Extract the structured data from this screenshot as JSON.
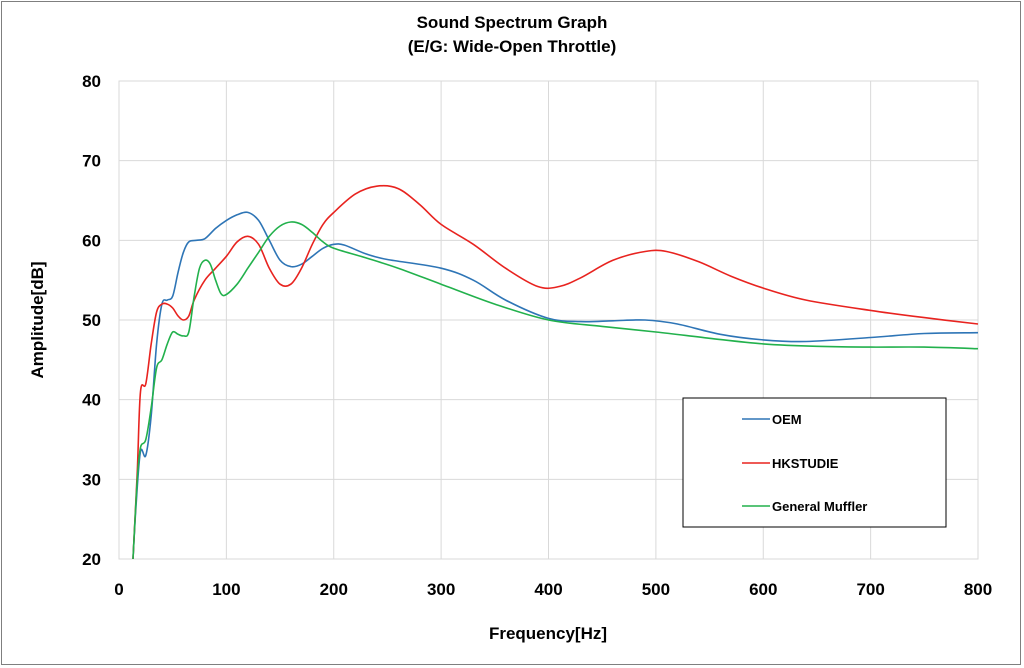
{
  "chart_data": {
    "type": "line",
    "title": "Sound Spectrum Graph",
    "subtitle": "(E/G: Wide-Open Throttle)",
    "xlabel": "Frequency[Hz]",
    "ylabel": "Amplitude[dB]",
    "xlim": [
      0,
      800
    ],
    "ylim": [
      20,
      80
    ],
    "x_ticks": [
      0,
      100,
      200,
      300,
      400,
      500,
      600,
      700,
      800
    ],
    "y_ticks": [
      20,
      30,
      40,
      50,
      60,
      70,
      80
    ],
    "grid": true,
    "legend_position": "bottom-right",
    "series": [
      {
        "name": "OEM",
        "color": "#2e75b6",
        "points": [
          [
            13,
            20
          ],
          [
            16,
            27
          ],
          [
            20,
            33.5
          ],
          [
            25,
            33
          ],
          [
            30,
            38
          ],
          [
            35,
            47
          ],
          [
            40,
            52
          ],
          [
            45,
            52.5
          ],
          [
            50,
            53
          ],
          [
            55,
            56
          ],
          [
            60,
            58.5
          ],
          [
            65,
            59.8
          ],
          [
            72,
            60
          ],
          [
            80,
            60.2
          ],
          [
            90,
            61.5
          ],
          [
            100,
            62.5
          ],
          [
            110,
            63.2
          ],
          [
            120,
            63.5
          ],
          [
            130,
            62.5
          ],
          [
            140,
            60
          ],
          [
            150,
            57.5
          ],
          [
            160,
            56.7
          ],
          [
            170,
            57
          ],
          [
            180,
            58
          ],
          [
            190,
            59
          ],
          [
            200,
            59.5
          ],
          [
            210,
            59.4
          ],
          [
            230,
            58.3
          ],
          [
            250,
            57.6
          ],
          [
            300,
            56.5
          ],
          [
            330,
            55
          ],
          [
            360,
            52.5
          ],
          [
            400,
            50.2
          ],
          [
            430,
            49.8
          ],
          [
            460,
            49.9
          ],
          [
            490,
            50
          ],
          [
            520,
            49.5
          ],
          [
            560,
            48.2
          ],
          [
            600,
            47.5
          ],
          [
            640,
            47.3
          ],
          [
            700,
            47.8
          ],
          [
            750,
            48.3
          ],
          [
            800,
            48.4
          ]
        ]
      },
      {
        "name": "HKSTUDIE",
        "color": "#e8231f",
        "points": [
          [
            13,
            20
          ],
          [
            17,
            31
          ],
          [
            20,
            41
          ],
          [
            25,
            42
          ],
          [
            30,
            47
          ],
          [
            35,
            51
          ],
          [
            40,
            52
          ],
          [
            45,
            52
          ],
          [
            50,
            51.5
          ],
          [
            55,
            50.5
          ],
          [
            60,
            50
          ],
          [
            65,
            50.5
          ],
          [
            70,
            52.5
          ],
          [
            80,
            55
          ],
          [
            90,
            56.5
          ],
          [
            100,
            58
          ],
          [
            110,
            59.8
          ],
          [
            120,
            60.5
          ],
          [
            130,
            59.5
          ],
          [
            140,
            56.5
          ],
          [
            150,
            54.5
          ],
          [
            160,
            54.5
          ],
          [
            170,
            56.5
          ],
          [
            180,
            59.5
          ],
          [
            190,
            62
          ],
          [
            200,
            63.5
          ],
          [
            220,
            65.8
          ],
          [
            240,
            66.8
          ],
          [
            260,
            66.5
          ],
          [
            280,
            64.5
          ],
          [
            300,
            62
          ],
          [
            330,
            59.5
          ],
          [
            360,
            56.5
          ],
          [
            390,
            54.2
          ],
          [
            410,
            54.2
          ],
          [
            430,
            55.3
          ],
          [
            460,
            57.5
          ],
          [
            490,
            58.6
          ],
          [
            510,
            58.6
          ],
          [
            540,
            57.3
          ],
          [
            570,
            55.5
          ],
          [
            600,
            54
          ],
          [
            640,
            52.5
          ],
          [
            700,
            51.2
          ],
          [
            750,
            50.3
          ],
          [
            800,
            49.5
          ]
        ]
      },
      {
        "name": "General Muffler",
        "color": "#22b14c",
        "points": [
          [
            13,
            20
          ],
          [
            17,
            30
          ],
          [
            20,
            34
          ],
          [
            25,
            35
          ],
          [
            30,
            39
          ],
          [
            35,
            44
          ],
          [
            40,
            45
          ],
          [
            45,
            47
          ],
          [
            50,
            48.5
          ],
          [
            55,
            48.2
          ],
          [
            60,
            48
          ],
          [
            65,
            48.5
          ],
          [
            70,
            53
          ],
          [
            75,
            56.5
          ],
          [
            80,
            57.5
          ],
          [
            85,
            57
          ],
          [
            90,
            55
          ],
          [
            95,
            53.3
          ],
          [
            100,
            53.2
          ],
          [
            110,
            54.5
          ],
          [
            120,
            56.5
          ],
          [
            130,
            58.5
          ],
          [
            140,
            60.5
          ],
          [
            150,
            61.8
          ],
          [
            160,
            62.3
          ],
          [
            170,
            62
          ],
          [
            180,
            61
          ],
          [
            190,
            59.8
          ],
          [
            200,
            59
          ],
          [
            230,
            57.8
          ],
          [
            260,
            56.5
          ],
          [
            300,
            54.5
          ],
          [
            350,
            52
          ],
          [
            400,
            50
          ],
          [
            450,
            49.2
          ],
          [
            500,
            48.5
          ],
          [
            550,
            47.7
          ],
          [
            600,
            47
          ],
          [
            650,
            46.7
          ],
          [
            700,
            46.6
          ],
          [
            750,
            46.6
          ],
          [
            800,
            46.4
          ]
        ]
      }
    ]
  }
}
